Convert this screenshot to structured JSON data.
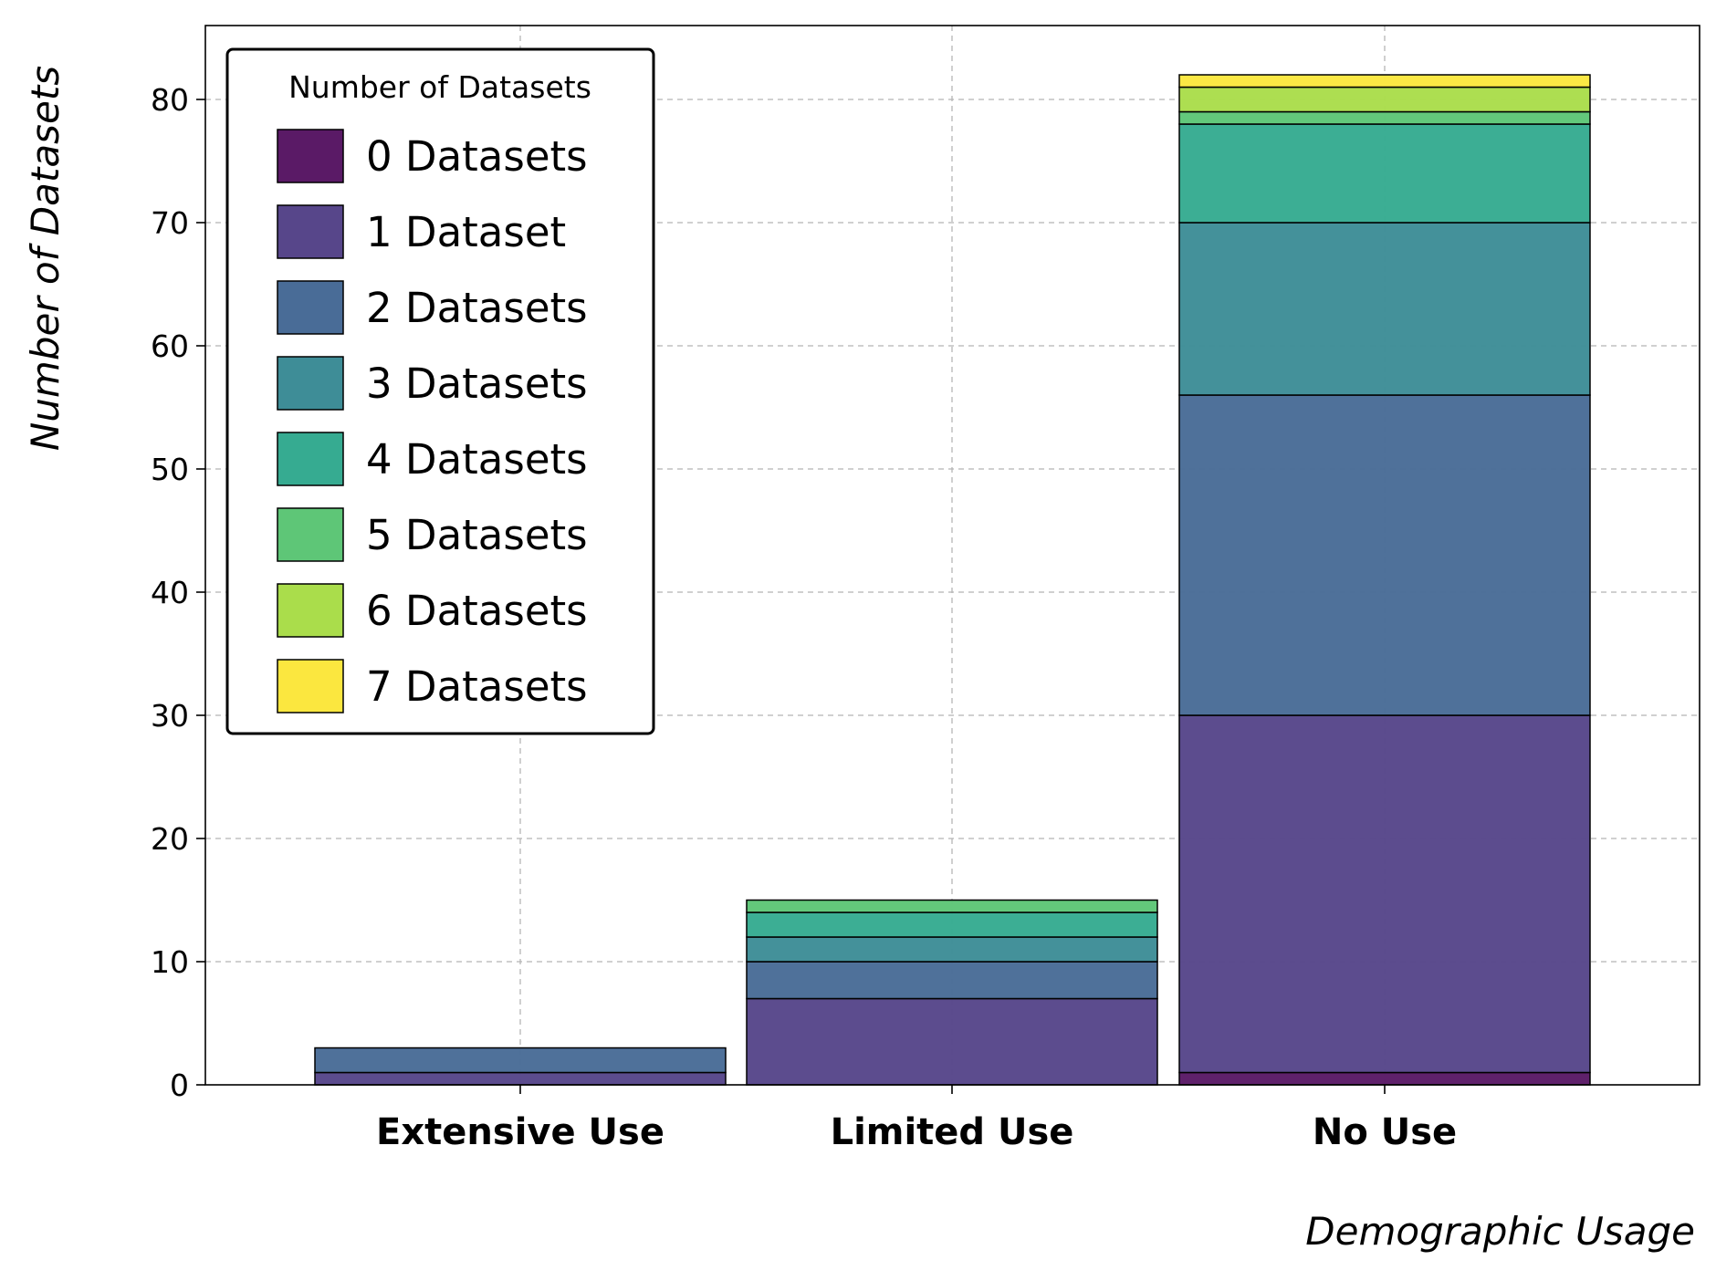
{
  "chart_data": {
    "type": "bar",
    "stacked": true,
    "title": "",
    "xlabel": "Demographic Usage",
    "ylabel": "Number of Datasets",
    "ylim": [
      0,
      86
    ],
    "yticks": [
      0,
      10,
      20,
      30,
      40,
      50,
      60,
      70,
      80
    ],
    "grid": true,
    "legend": {
      "title": "Number of Datasets",
      "placement": "top-left"
    },
    "categories": [
      "Extensive Use",
      "Limited Use",
      "No Use"
    ],
    "series": [
      {
        "name": "0 Datasets",
        "color": "#5a1a66",
        "values": [
          0,
          0,
          1
        ]
      },
      {
        "name": "1 Dataset",
        "color": "#57468a",
        "values": [
          1,
          7,
          29
        ]
      },
      {
        "name": "2 Datasets",
        "color": "#496c97",
        "values": [
          2,
          3,
          26
        ]
      },
      {
        "name": "3 Datasets",
        "color": "#3e8d97",
        "values": [
          0,
          2,
          14
        ]
      },
      {
        "name": "4 Datasets",
        "color": "#36ab91",
        "values": [
          0,
          2,
          8
        ]
      },
      {
        "name": "5 Datasets",
        "color": "#5ec677",
        "values": [
          0,
          1,
          1
        ]
      },
      {
        "name": "6 Datasets",
        "color": "#aadd4b",
        "values": [
          0,
          0,
          2
        ]
      },
      {
        "name": "7 Datasets",
        "color": "#fbe73f",
        "values": [
          0,
          0,
          1
        ]
      }
    ]
  }
}
